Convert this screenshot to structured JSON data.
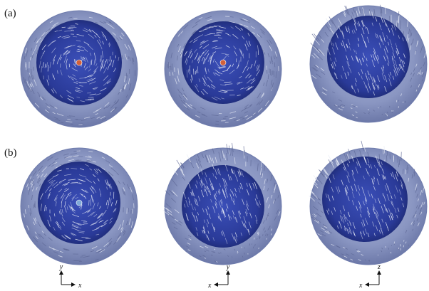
{
  "figure": {
    "rows": [
      {
        "label": "(a)",
        "panels": [
          {
            "pattern": "vortex",
            "core": "#d2603a",
            "twist": 1
          },
          {
            "pattern": "vortex",
            "core": "#d2603a",
            "twist": 1
          },
          {
            "pattern": "uniform",
            "core": null,
            "twist": 0
          }
        ]
      },
      {
        "label": "(b)",
        "panels": [
          {
            "pattern": "vortex",
            "core": "#7fa8d8",
            "twist": 1
          },
          {
            "pattern": "uniform",
            "core": null,
            "twist": 0
          },
          {
            "pattern": "uniform",
            "core": null,
            "twist": 0
          }
        ]
      }
    ],
    "axes": [
      {
        "vertical": "y",
        "horizontal": "x",
        "direction": "right"
      },
      {
        "vertical": "y",
        "horizontal": "x",
        "direction": "left"
      },
      {
        "vertical": "z",
        "horizontal": "x",
        "direction": "left"
      }
    ],
    "colors": {
      "outer_shell": "#8a96c2",
      "outer_shell_edge": "#6f7cad",
      "inner_sphere": "#2f3f9e",
      "inner_sphere_dark": "#1d2a7a",
      "streaks": "#e8ecf6"
    }
  }
}
